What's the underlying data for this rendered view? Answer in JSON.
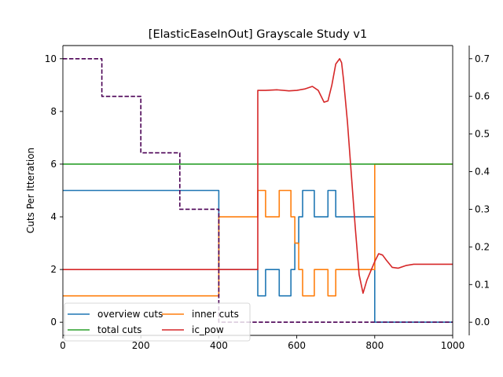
{
  "chart_data": {
    "type": "line",
    "title": "[ElasticEaseInOut] Grayscale Study v1",
    "xlabel": "",
    "ylabel": "Cuts Per Itteration",
    "xlim": [
      0,
      1000
    ],
    "ylim": [
      -0.5,
      10.5
    ],
    "y2lim": [
      -0.035,
      0.735
    ],
    "xticks": [
      "0",
      "200",
      "400",
      "600",
      "800",
      "1000"
    ],
    "yticks": [
      "0",
      "2",
      "4",
      "6",
      "8",
      "10"
    ],
    "y2ticks": [
      "0.0",
      "0.1",
      "0.2",
      "0.3",
      "0.4",
      "0.5",
      "0.6",
      "0.7"
    ],
    "grid": false,
    "legend_position": "lower-left",
    "legend": [
      {
        "label": "overview cuts",
        "color": "#1f77b4"
      },
      {
        "label": "inner cuts",
        "color": "#ff7f0e"
      },
      {
        "label": "total cuts",
        "color": "#2ca02c"
      },
      {
        "label": "ic_pow",
        "color": "#d62728"
      }
    ],
    "series": [
      {
        "name": "overview cuts",
        "color": "#1f77b4",
        "axis": "left",
        "style": "solid",
        "step": true,
        "x": [
          0,
          400,
          400,
          500,
          500,
          520,
          520,
          555,
          555,
          585,
          585,
          595,
          595,
          605,
          605,
          615,
          615,
          645,
          645,
          680,
          680,
          700,
          700,
          800,
          800,
          1000
        ],
        "y": [
          5,
          5,
          2,
          2,
          1,
          1,
          2,
          2,
          1,
          1,
          2,
          2,
          3,
          3,
          4,
          4,
          5,
          5,
          4,
          4,
          5,
          5,
          4,
          4,
          0,
          0
        ]
      },
      {
        "name": "inner cuts",
        "color": "#ff7f0e",
        "axis": "left",
        "style": "solid",
        "step": true,
        "x": [
          0,
          400,
          400,
          500,
          500,
          520,
          520,
          555,
          555,
          585,
          585,
          595,
          595,
          605,
          605,
          615,
          615,
          645,
          645,
          680,
          680,
          700,
          700,
          800,
          800,
          1000
        ],
        "y": [
          1,
          1,
          4,
          4,
          5,
          5,
          4,
          4,
          5,
          5,
          4,
          4,
          3,
          3,
          2,
          2,
          1,
          1,
          2,
          2,
          1,
          1,
          2,
          2,
          6,
          6
        ]
      },
      {
        "name": "total cuts",
        "color": "#2ca02c",
        "axis": "left",
        "style": "solid",
        "step": false,
        "x": [
          0,
          1000
        ],
        "y": [
          6,
          6
        ]
      },
      {
        "name": "ic_pow",
        "color": "#d62728",
        "axis": "left",
        "style": "solid",
        "step": false,
        "x": [
          0,
          500,
          500,
          520,
          550,
          580,
          600,
          620,
          640,
          655,
          670,
          680,
          690,
          700,
          710,
          715,
          720,
          730,
          740,
          750,
          760,
          770,
          780,
          790,
          800,
          810,
          820,
          830,
          845,
          860,
          880,
          900,
          950,
          1000
        ],
        "y": [
          2,
          2,
          8.8,
          8.8,
          8.82,
          8.78,
          8.8,
          8.85,
          8.95,
          8.8,
          8.35,
          8.4,
          9.0,
          9.8,
          10.0,
          9.85,
          9.2,
          7.6,
          5.6,
          3.6,
          1.8,
          1.1,
          1.6,
          1.95,
          2.3,
          2.6,
          2.55,
          2.35,
          2.08,
          2.05,
          2.15,
          2.2,
          2.2,
          2.2
        ]
      },
      {
        "name": "",
        "color": "#4b0055",
        "axis": "right",
        "style": "dashed",
        "step": true,
        "x": [
          0,
          100,
          100,
          200,
          200,
          300,
          300,
          400,
          400,
          1000
        ],
        "y": [
          0.7,
          0.7,
          0.6,
          0.6,
          0.45,
          0.45,
          0.3,
          0.3,
          0,
          0
        ]
      }
    ]
  }
}
